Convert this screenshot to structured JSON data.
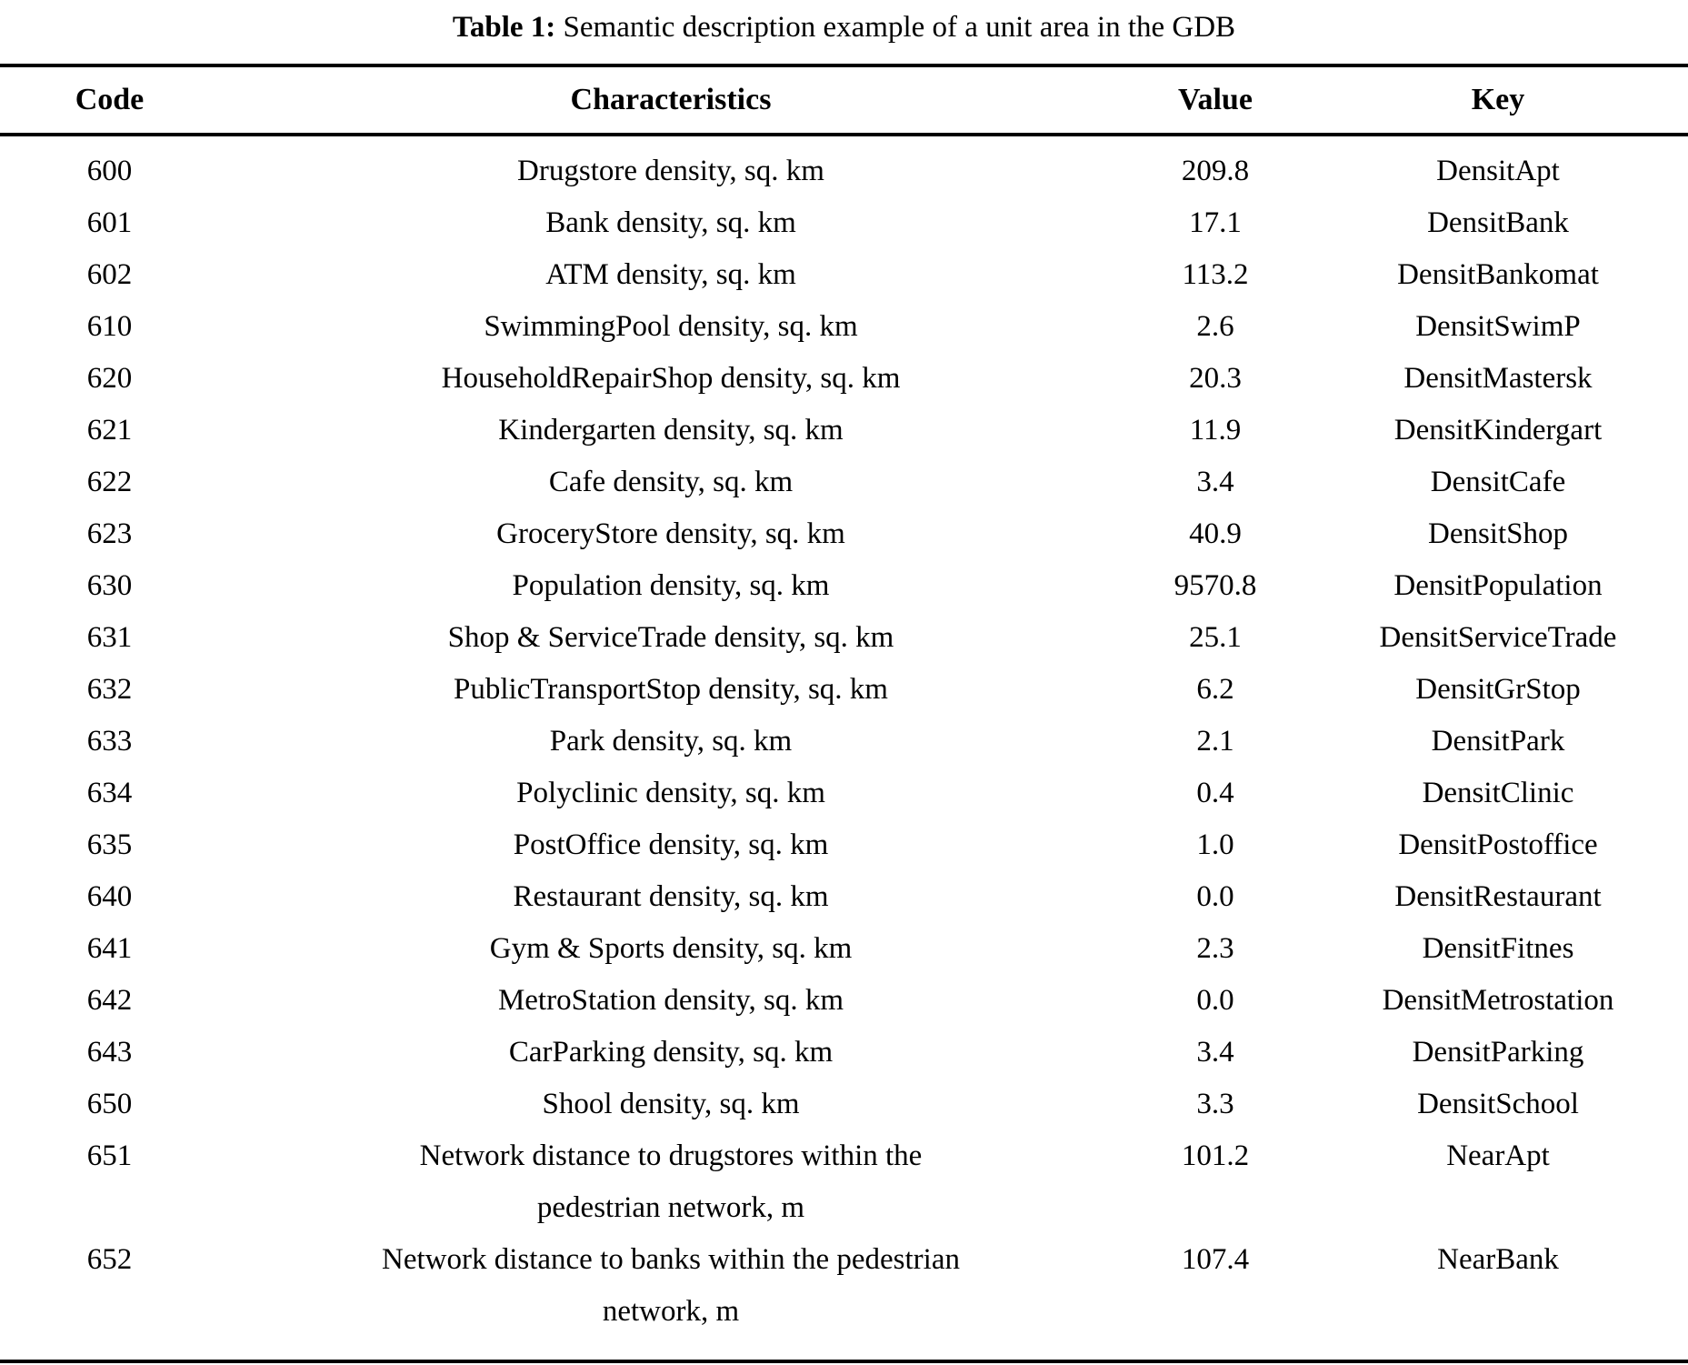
{
  "caption": {
    "label": "Table 1:",
    "text": " Semantic description example of a unit area in the GDB"
  },
  "colors": {
    "text": "#000000",
    "background": "#ffffff",
    "rule": "#000000"
  },
  "table": {
    "columns": {
      "code": "Code",
      "characteristics": "Characteristics",
      "value": "Value",
      "key": "Key"
    },
    "rows": [
      {
        "code": "600",
        "characteristics": "Drugstore density, sq. km",
        "value": "209.8",
        "key": "DensitApt"
      },
      {
        "code": "601",
        "characteristics": "Bank density, sq. km",
        "value": "17.1",
        "key": "DensitBank"
      },
      {
        "code": "602",
        "characteristics": "ATM density, sq. km",
        "value": "113.2",
        "key": "DensitBankomat"
      },
      {
        "code": "610",
        "characteristics": "SwimmingPool density, sq. km",
        "value": "2.6",
        "key": "DensitSwimP"
      },
      {
        "code": "620",
        "characteristics": "HouseholdRepairShop density, sq. km",
        "value": "20.3",
        "key": "DensitMastersk"
      },
      {
        "code": "621",
        "characteristics": "Kindergarten density, sq. km",
        "value": "11.9",
        "key": "DensitKindergart"
      },
      {
        "code": "622",
        "characteristics": "Cafe density, sq. km",
        "value": "3.4",
        "key": "DensitCafe"
      },
      {
        "code": "623",
        "characteristics": "GroceryStore density, sq. km",
        "value": "40.9",
        "key": "DensitShop"
      },
      {
        "code": "630",
        "characteristics": "Population density, sq. km",
        "value": "9570.8",
        "key": "DensitPopulation"
      },
      {
        "code": "631",
        "characteristics": "Shop & ServiceTrade density, sq. km",
        "value": "25.1",
        "key": "DensitServiceTrade"
      },
      {
        "code": "632",
        "characteristics": "PublicTransportStop density, sq. km",
        "value": "6.2",
        "key": "DensitGrStop"
      },
      {
        "code": "633",
        "characteristics": "Park density, sq. km",
        "value": "2.1",
        "key": "DensitPark"
      },
      {
        "code": "634",
        "characteristics": "Polyclinic density, sq. km",
        "value": "0.4",
        "key": "DensitClinic"
      },
      {
        "code": "635",
        "characteristics": "PostOffice density, sq. km",
        "value": "1.0",
        "key": "DensitPostoffice"
      },
      {
        "code": "640",
        "characteristics": "Restaurant density, sq. km",
        "value": "0.0",
        "key": "DensitRestaurant"
      },
      {
        "code": "641",
        "characteristics": "Gym & Sports density, sq. km",
        "value": "2.3",
        "key": "DensitFitnes"
      },
      {
        "code": "642",
        "characteristics": "MetroStation density, sq. km",
        "value": "0.0",
        "key": "DensitMetrostation"
      },
      {
        "code": "643",
        "characteristics": "CarParking density, sq. km",
        "value": "3.4",
        "key": "DensitParking"
      },
      {
        "code": "650",
        "characteristics": "Shool density, sq. km",
        "value": "3.3",
        "key": "DensitSchool"
      },
      {
        "code": "651",
        "characteristics": "Network distance to drugstores within the\npedestrian network, m",
        "value": "101.2",
        "key": "NearApt"
      },
      {
        "code": "652",
        "characteristics": "Network distance to banks within the pedestrian\nnetwork, m",
        "value": "107.4",
        "key": "NearBank"
      }
    ]
  }
}
